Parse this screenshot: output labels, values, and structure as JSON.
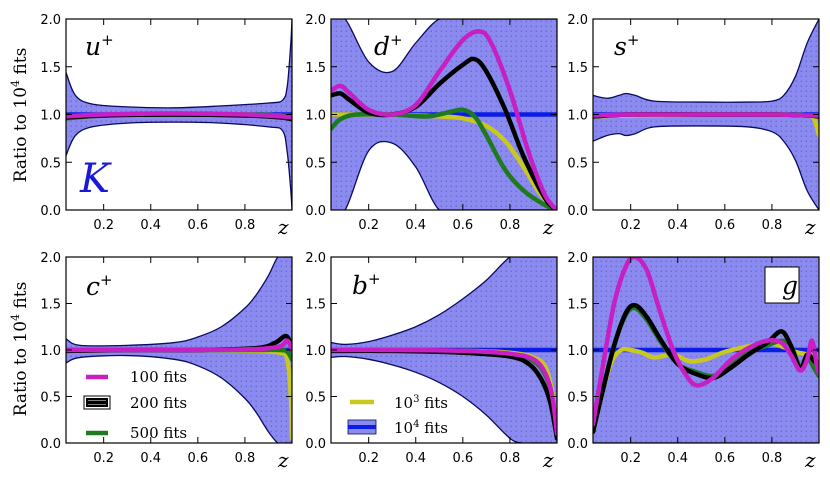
{
  "colors": {
    "band_fill": "#8a8af0",
    "band_edge": "#0a0a60",
    "c100": "#c71fc4",
    "c200": "#000000",
    "c500": "#1f7a1f",
    "c1000": "#c8c81e",
    "c10000": "#0a1de6",
    "k_label": "#1a1ad6"
  },
  "ylabel": "Ratio to 10",
  "ylabel_sup": "4",
  "ylabel_tail": " fits",
  "xlabel": "z",
  "k_label": "K",
  "legend": {
    "fits100": "100 fits",
    "fits200": "200 fits",
    "fits500": "500 fits",
    "fits1000_base": "10",
    "fits1000_sup": "3",
    "fits1000_tail": " fits",
    "fits10000_base": "10",
    "fits10000_sup": "4",
    "fits10000_tail": " fits"
  },
  "chart_data": [
    {
      "type": "line",
      "panel": "u+",
      "label_base": "u",
      "label_sup": "+",
      "xlim": [
        0.04,
        1.0
      ],
      "ylim": [
        0.0,
        2.0
      ],
      "x_ticks": [
        "0.2",
        "0.4",
        "0.6",
        "0.8"
      ],
      "y_ticks": [
        "0.0",
        "0.5",
        "1.0",
        "1.5",
        "2.0"
      ],
      "band_1e4": {
        "x": [
          0.04,
          0.08,
          0.15,
          0.3,
          0.5,
          0.7,
          0.9,
          0.96,
          0.98,
          0.995,
          1.0
        ],
        "upper": [
          1.44,
          1.2,
          1.11,
          1.08,
          1.07,
          1.09,
          1.12,
          1.15,
          1.3,
          1.75,
          2.0
        ],
        "lower": [
          0.57,
          0.78,
          0.87,
          0.91,
          0.92,
          0.91,
          0.87,
          0.83,
          0.6,
          0.2,
          0.0
        ]
      },
      "series": [
        {
          "name": "100 fits",
          "key": "c100",
          "x": [
            0.04,
            0.2,
            0.5,
            0.8,
            0.95,
            1.0
          ],
          "y": [
            0.98,
            1.0,
            1.01,
            1.0,
            0.98,
            0.97
          ]
        },
        {
          "name": "200 fits",
          "key": "c200",
          "x": [
            0.04,
            0.2,
            0.5,
            0.8,
            0.95,
            1.0
          ],
          "y": [
            0.97,
            0.99,
            1.0,
            0.99,
            0.97,
            0.95
          ]
        },
        {
          "name": "500 fits",
          "key": "c500",
          "x": [
            0.04,
            0.2,
            0.5,
            0.8,
            0.95,
            1.0
          ],
          "y": [
            0.96,
            0.99,
            1.0,
            1.0,
            0.99,
            0.98
          ]
        },
        {
          "name": "10^3 fits",
          "key": "c1000",
          "x": [
            0.04,
            0.2,
            0.5,
            0.8,
            0.95,
            1.0
          ],
          "y": [
            0.97,
            0.99,
            1.0,
            1.0,
            0.99,
            0.98
          ]
        },
        {
          "name": "10^4 fits",
          "key": "c10000",
          "x": [
            0.04,
            1.0
          ],
          "y": [
            1.0,
            1.0
          ]
        }
      ]
    },
    {
      "type": "line",
      "panel": "d+",
      "label_base": "d",
      "label_sup": "+",
      "xlim": [
        0.04,
        1.0
      ],
      "ylim": [
        0.0,
        2.0
      ],
      "x_ticks": [
        "0.2",
        "0.4",
        "0.6",
        "0.8"
      ],
      "y_ticks": [
        "0.0",
        "0.5",
        "1.0",
        "1.5",
        "2.0"
      ],
      "band_1e4": {
        "x": [
          0.04,
          0.1,
          0.2,
          0.3,
          0.4,
          0.5,
          0.6,
          0.7,
          0.8,
          0.9,
          0.95,
          1.0
        ],
        "upper": [
          2.0,
          2.0,
          1.55,
          1.45,
          1.75,
          2.0,
          2.0,
          2.0,
          2.0,
          2.0,
          2.0,
          2.0
        ],
        "lower": [
          0.0,
          0.0,
          0.62,
          0.7,
          0.45,
          0.0,
          0.0,
          0.0,
          0.0,
          0.0,
          0.0,
          0.0
        ]
      },
      "series": [
        {
          "name": "100 fits",
          "key": "c100",
          "x": [
            0.04,
            0.08,
            0.12,
            0.2,
            0.3,
            0.4,
            0.5,
            0.6,
            0.67,
            0.72,
            0.8,
            0.88,
            0.95,
            1.0
          ],
          "y": [
            1.25,
            1.3,
            1.22,
            1.05,
            1.0,
            1.1,
            1.45,
            1.78,
            1.87,
            1.75,
            1.25,
            0.6,
            0.15,
            0.0
          ]
        },
        {
          "name": "200 fits",
          "key": "c200",
          "x": [
            0.04,
            0.08,
            0.12,
            0.2,
            0.3,
            0.4,
            0.5,
            0.6,
            0.65,
            0.7,
            0.78,
            0.86,
            0.95,
            1.0
          ],
          "y": [
            1.2,
            1.22,
            1.15,
            1.02,
            1.0,
            1.08,
            1.32,
            1.52,
            1.58,
            1.45,
            1.05,
            0.55,
            0.12,
            0.0
          ]
        },
        {
          "name": "500 fits",
          "key": "c500",
          "x": [
            0.04,
            0.08,
            0.15,
            0.3,
            0.45,
            0.55,
            0.6,
            0.65,
            0.7,
            0.78,
            0.86,
            0.95,
            1.0
          ],
          "y": [
            0.85,
            0.95,
            1.0,
            1.0,
            0.98,
            1.03,
            1.05,
            0.98,
            0.78,
            0.42,
            0.2,
            0.05,
            0.0
          ]
        },
        {
          "name": "10^3 fits",
          "key": "c1000",
          "x": [
            0.04,
            0.1,
            0.2,
            0.3,
            0.4,
            0.5,
            0.6,
            0.7,
            0.78,
            0.85,
            0.92,
            0.97,
            1.0
          ],
          "y": [
            1.0,
            1.0,
            1.0,
            1.0,
            0.99,
            0.98,
            0.96,
            0.88,
            0.72,
            0.48,
            0.2,
            0.05,
            0.0
          ]
        },
        {
          "name": "10^4 fits",
          "key": "c10000",
          "x": [
            0.04,
            1.0
          ],
          "y": [
            1.0,
            1.0
          ]
        }
      ]
    },
    {
      "type": "line",
      "panel": "s+",
      "label_base": "s",
      "label_sup": "+",
      "xlim": [
        0.04,
        1.0
      ],
      "ylim": [
        0.0,
        2.0
      ],
      "x_ticks": [
        "0.2",
        "0.4",
        "0.6",
        "0.8"
      ],
      "y_ticks": [
        "0.0",
        "0.5",
        "1.0",
        "1.5",
        "2.0"
      ],
      "band_1e4": {
        "x": [
          0.04,
          0.1,
          0.15,
          0.18,
          0.22,
          0.3,
          0.5,
          0.7,
          0.8,
          0.85,
          0.9,
          0.95,
          1.0
        ],
        "upper": [
          1.2,
          1.17,
          1.2,
          1.22,
          1.2,
          1.14,
          1.13,
          1.13,
          1.14,
          1.2,
          1.4,
          1.75,
          2.0
        ],
        "lower": [
          0.72,
          0.78,
          0.8,
          0.78,
          0.8,
          0.87,
          0.88,
          0.87,
          0.82,
          0.72,
          0.52,
          0.2,
          0.0
        ]
      },
      "series": [
        {
          "name": "100 fits",
          "key": "c100",
          "x": [
            0.04,
            0.2,
            0.5,
            0.8,
            0.95,
            1.0
          ],
          "y": [
            0.99,
            1.0,
            1.0,
            1.0,
            0.99,
            0.99
          ]
        },
        {
          "name": "200 fits",
          "key": "c200",
          "x": [
            0.04,
            0.2,
            0.5,
            0.8,
            0.95,
            1.0
          ],
          "y": [
            0.98,
            1.0,
            1.0,
            1.0,
            0.99,
            0.98
          ]
        },
        {
          "name": "500 fits",
          "key": "c500",
          "x": [
            0.04,
            0.2,
            0.5,
            0.8,
            0.95,
            1.0
          ],
          "y": [
            0.98,
            1.0,
            1.0,
            1.0,
            0.99,
            0.98
          ]
        },
        {
          "name": "10^3 fits",
          "key": "c1000",
          "x": [
            0.04,
            0.2,
            0.5,
            0.8,
            0.95,
            0.98,
            1.0
          ],
          "y": [
            0.98,
            0.99,
            1.0,
            1.0,
            0.99,
            0.95,
            0.78
          ]
        },
        {
          "name": "10^4 fits",
          "key": "c10000",
          "x": [
            0.04,
            1.0
          ],
          "y": [
            1.0,
            1.0
          ]
        }
      ]
    },
    {
      "type": "line",
      "panel": "c+",
      "label_base": "c",
      "label_sup": "+",
      "xlim": [
        0.04,
        1.0
      ],
      "ylim": [
        0.0,
        2.0
      ],
      "x_ticks": [
        "0.2",
        "0.4",
        "0.6",
        "0.8"
      ],
      "y_ticks": [
        "0.0",
        "0.5",
        "1.0",
        "1.5",
        "2.0"
      ],
      "band_1e4": {
        "x": [
          0.04,
          0.1,
          0.3,
          0.5,
          0.6,
          0.7,
          0.8,
          0.85,
          0.9,
          0.94,
          0.97,
          1.0
        ],
        "upper": [
          1.12,
          1.05,
          1.05,
          1.08,
          1.14,
          1.25,
          1.45,
          1.6,
          1.8,
          2.0,
          2.0,
          2.0
        ],
        "lower": [
          0.86,
          0.92,
          0.94,
          0.9,
          0.83,
          0.7,
          0.48,
          0.32,
          0.12,
          0.0,
          0.0,
          0.0
        ]
      },
      "series": [
        {
          "name": "100 fits",
          "key": "c100",
          "x": [
            0.04,
            0.3,
            0.6,
            0.85,
            0.95,
            0.98,
            1.0
          ],
          "y": [
            1.0,
            1.0,
            1.0,
            1.01,
            1.04,
            1.1,
            1.0
          ]
        },
        {
          "name": "200 fits",
          "key": "c200",
          "x": [
            0.04,
            0.3,
            0.6,
            0.85,
            0.93,
            0.97,
            0.99,
            1.0
          ],
          "y": [
            0.99,
            1.0,
            1.0,
            1.02,
            1.08,
            1.15,
            1.1,
            1.0
          ]
        },
        {
          "name": "500 fits",
          "key": "c500",
          "x": [
            0.04,
            0.3,
            0.6,
            0.85,
            0.95,
            0.98,
            1.0
          ],
          "y": [
            0.99,
            1.0,
            1.0,
            1.0,
            1.0,
            0.98,
            0.9
          ]
        },
        {
          "name": "10^3 fits",
          "key": "c1000",
          "x": [
            0.04,
            0.3,
            0.6,
            0.85,
            0.95,
            0.98,
            0.995,
            1.0
          ],
          "y": [
            0.99,
            1.0,
            1.0,
            0.99,
            0.97,
            0.9,
            0.5,
            0.05
          ]
        },
        {
          "name": "10^4 fits",
          "key": "c10000",
          "x": [
            0.04,
            1.0
          ],
          "y": [
            1.0,
            1.0
          ]
        }
      ]
    },
    {
      "type": "line",
      "panel": "b+",
      "label_base": "b",
      "label_sup": "+",
      "xlim": [
        0.04,
        1.0
      ],
      "ylim": [
        0.0,
        2.0
      ],
      "x_ticks": [
        "0.2",
        "0.4",
        "0.6",
        "0.8"
      ],
      "y_ticks": [
        "0.0",
        "0.5",
        "1.0",
        "1.5",
        "2.0"
      ],
      "band_1e4": {
        "x": [
          0.04,
          0.1,
          0.2,
          0.3,
          0.4,
          0.5,
          0.6,
          0.7,
          0.8,
          0.85,
          0.9,
          1.0
        ],
        "upper": [
          1.08,
          1.06,
          1.09,
          1.16,
          1.25,
          1.38,
          1.55,
          1.75,
          2.0,
          2.0,
          2.0,
          2.0
        ],
        "lower": [
          0.92,
          0.93,
          0.9,
          0.84,
          0.76,
          0.65,
          0.5,
          0.3,
          0.05,
          0.0,
          0.0,
          0.0
        ]
      },
      "series": [
        {
          "name": "100 fits",
          "key": "c100",
          "x": [
            0.04,
            0.3,
            0.6,
            0.8,
            0.9,
            0.95,
            0.98,
            1.0
          ],
          "y": [
            1.0,
            1.0,
            0.99,
            0.96,
            0.9,
            0.75,
            0.5,
            0.1
          ]
        },
        {
          "name": "200 fits",
          "key": "c200",
          "x": [
            0.04,
            0.3,
            0.6,
            0.8,
            0.88,
            0.93,
            0.97,
            1.0
          ],
          "y": [
            0.99,
            0.99,
            0.97,
            0.93,
            0.85,
            0.7,
            0.45,
            0.05
          ]
        },
        {
          "name": "500 fits",
          "key": "c500",
          "x": [
            0.04,
            0.3,
            0.6,
            0.8,
            0.9,
            0.95,
            0.98,
            1.0
          ],
          "y": [
            0.99,
            0.99,
            0.98,
            0.95,
            0.88,
            0.73,
            0.48,
            0.1
          ]
        },
        {
          "name": "10^3 fits",
          "key": "c1000",
          "x": [
            0.04,
            0.3,
            0.6,
            0.8,
            0.9,
            0.95,
            0.98,
            1.0
          ],
          "y": [
            0.99,
            0.99,
            0.99,
            0.97,
            0.92,
            0.82,
            0.55,
            0.1
          ]
        },
        {
          "name": "10^4 fits",
          "key": "c10000",
          "x": [
            0.04,
            1.0
          ],
          "y": [
            1.0,
            1.0
          ]
        }
      ]
    },
    {
      "type": "line",
      "panel": "g",
      "label_base": "g",
      "label_sup": "",
      "xlim": [
        0.04,
        1.0
      ],
      "ylim": [
        0.0,
        2.0
      ],
      "x_ticks": [
        "0.2",
        "0.4",
        "0.6",
        "0.8"
      ],
      "y_ticks": [
        "0.0",
        "0.5",
        "1.0",
        "1.5",
        "2.0"
      ],
      "band_1e4": {
        "x": [
          0.04,
          1.0
        ],
        "upper": [
          2.0,
          2.0
        ],
        "lower": [
          0.0,
          0.0
        ]
      },
      "series": [
        {
          "name": "100 fits",
          "key": "c100",
          "x": [
            0.04,
            0.08,
            0.13,
            0.18,
            0.22,
            0.27,
            0.32,
            0.38,
            0.43,
            0.48,
            0.55,
            0.62,
            0.7,
            0.78,
            0.84,
            0.88,
            0.92,
            0.95,
            0.97,
            0.99,
            1.0
          ],
          "y": [
            0.2,
            0.8,
            1.5,
            1.9,
            2.0,
            1.85,
            1.45,
            1.0,
            0.75,
            0.62,
            0.7,
            0.88,
            1.02,
            1.1,
            1.08,
            0.95,
            0.78,
            0.9,
            1.1,
            0.85,
            0.75
          ]
        },
        {
          "name": "200 fits",
          "key": "c200",
          "x": [
            0.04,
            0.08,
            0.13,
            0.18,
            0.22,
            0.27,
            0.33,
            0.4,
            0.47,
            0.55,
            0.62,
            0.7,
            0.78,
            0.84,
            0.88,
            0.92,
            0.95,
            0.98,
            1.0
          ],
          "y": [
            0.12,
            0.55,
            1.05,
            1.4,
            1.48,
            1.35,
            1.1,
            0.85,
            0.75,
            0.7,
            0.8,
            0.95,
            1.08,
            1.2,
            1.05,
            0.8,
            0.95,
            0.88,
            0.85
          ]
        },
        {
          "name": "500 fits",
          "key": "c500",
          "x": [
            0.04,
            0.08,
            0.13,
            0.18,
            0.22,
            0.27,
            0.33,
            0.4,
            0.47,
            0.55,
            0.62,
            0.7,
            0.78,
            0.84,
            0.88,
            0.92,
            0.95,
            0.98,
            1.0
          ],
          "y": [
            0.12,
            0.55,
            1.05,
            1.38,
            1.45,
            1.32,
            1.08,
            0.85,
            0.77,
            0.72,
            0.82,
            0.97,
            1.05,
            1.1,
            1.05,
            0.82,
            0.92,
            0.8,
            0.72
          ]
        },
        {
          "name": "10^3 fits",
          "key": "c1000",
          "x": [
            0.04,
            0.08,
            0.12,
            0.16,
            0.2,
            0.25,
            0.3,
            0.38,
            0.45,
            0.52,
            0.6,
            0.7,
            0.78,
            0.85,
            0.9,
            0.95,
            1.0
          ],
          "y": [
            0.12,
            0.55,
            0.88,
            1.0,
            1.0,
            0.97,
            0.92,
            0.95,
            0.88,
            0.9,
            0.98,
            1.04,
            1.08,
            1.03,
            0.98,
            0.95,
            0.9
          ]
        },
        {
          "name": "10^4 fits",
          "key": "c10000",
          "x": [
            0.04,
            1.0
          ],
          "y": [
            1.0,
            1.0
          ]
        }
      ]
    }
  ]
}
